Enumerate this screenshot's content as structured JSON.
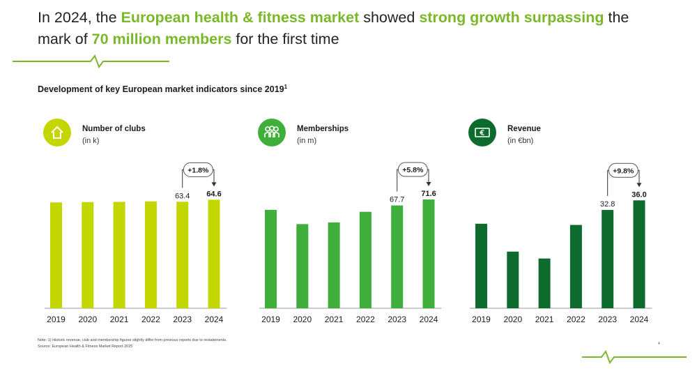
{
  "headline": {
    "part1": "In 2024, the ",
    "highlight1": "European health & fitness market",
    "part2": " showed ",
    "highlight2": "strong growth surpassing",
    "part3": " the mark of ",
    "highlight3": "70 million members",
    "part4": " for the first time"
  },
  "subtitle": {
    "text": "Development of key European market indicators since 2019",
    "sup": "1"
  },
  "colors": {
    "accent": "#7ab829",
    "clubs": "#c4d600",
    "memberships": "#3fae3a",
    "revenue": "#0d6b2e"
  },
  "chart_data": [
    {
      "type": "bar",
      "title": "Number of clubs",
      "unit": "(in k)",
      "icon": "house-icon",
      "color": "#c4d600",
      "categories": [
        "2019",
        "2020",
        "2021",
        "2022",
        "2023",
        "2024"
      ],
      "values": [
        63.0,
        63.2,
        63.3,
        63.6,
        63.4,
        64.6
      ],
      "labels": [
        "",
        "",
        "",
        "",
        "63.4",
        "64.6"
      ],
      "growth_label": "+1.8%",
      "ylim": [
        0,
        66
      ]
    },
    {
      "type": "bar",
      "title": "Memberships",
      "unit": "(in m)",
      "icon": "people-icon",
      "color": "#3fae3a",
      "categories": [
        "2019",
        "2020",
        "2021",
        "2022",
        "2023",
        "2024"
      ],
      "values": [
        64.8,
        55.4,
        56.5,
        63.5,
        67.7,
        71.6
      ],
      "labels": [
        "",
        "",
        "",
        "",
        "67.7",
        "71.6"
      ],
      "growth_label": "+5.8%",
      "ylim": [
        0,
        73
      ]
    },
    {
      "type": "bar",
      "title": "Revenue",
      "unit": "(in €bn)",
      "icon": "euro-banknote-icon",
      "color": "#0d6b2e",
      "categories": [
        "2019",
        "2020",
        "2021",
        "2022",
        "2023",
        "2024"
      ],
      "values": [
        28.2,
        18.9,
        16.6,
        27.8,
        32.8,
        36.0
      ],
      "labels": [
        "",
        "",
        "",
        "",
        "32.8",
        "36.0"
      ],
      "growth_label": "+9.8%",
      "ylim": [
        0,
        37
      ]
    }
  ],
  "footnotes": {
    "note": "Note: 1) Historic revenue, club and membership figures slightly differ from previous reports due to restatements.",
    "source": "Source: European Health & Fitness Market Report 2025"
  },
  "page_number": "4"
}
